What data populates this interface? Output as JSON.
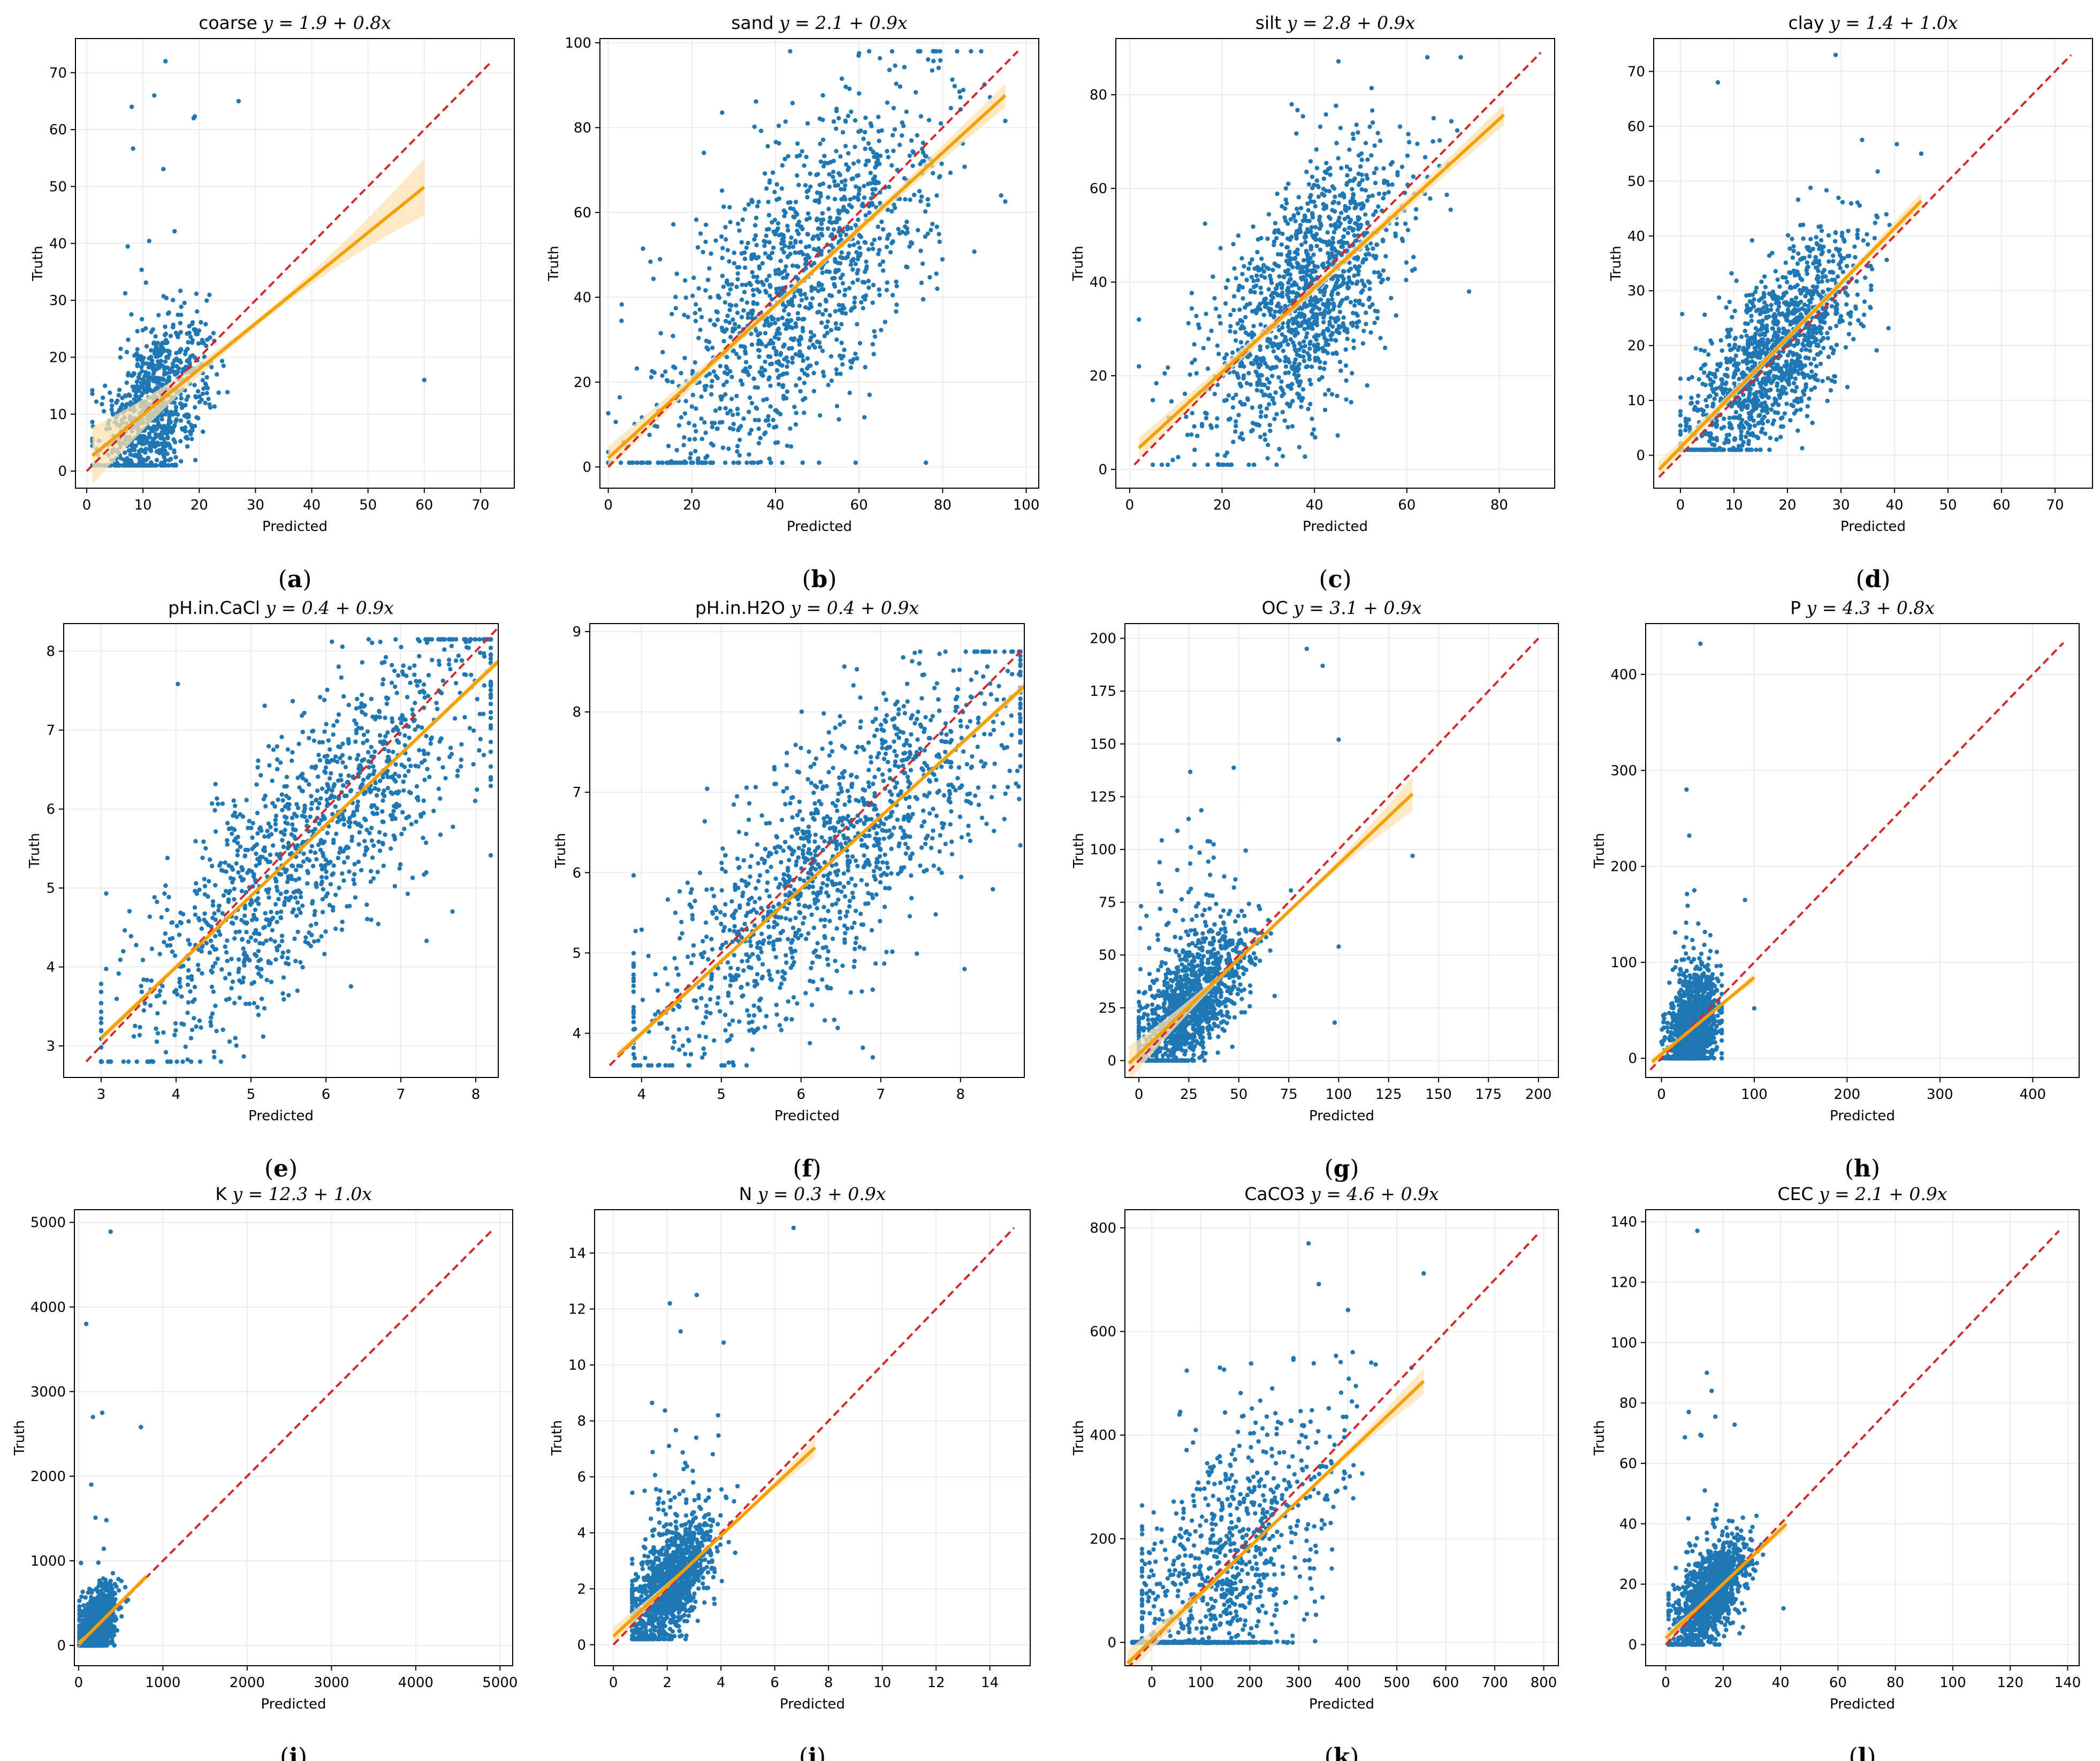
{
  "colors": {
    "points": "#1f77b4",
    "fit_line": "#f5a000",
    "fit_band": "#fde2b0",
    "identity": "#d62728",
    "grid": "#ececec"
  },
  "chart_data": [
    {
      "type": "scatter",
      "title_name": "coarse",
      "title_eq": "y = 1.9 + 0.8x",
      "label": "a",
      "xlabel": "Predicted",
      "ylabel": "Truth",
      "xlim": [
        -2,
        76
      ],
      "ylim": [
        -3,
        76
      ],
      "xticks": [
        0,
        10,
        20,
        30,
        40,
        50,
        60,
        70
      ],
      "yticks": [
        0,
        10,
        20,
        30,
        40,
        50,
        60,
        70
      ],
      "identity": [
        0,
        72
      ],
      "fit": {
        "intercept": 1.9,
        "slope": 0.8,
        "x": [
          1,
          60
        ],
        "band": [
          0.6,
          5.0
        ]
      },
      "cloud": {
        "n": 900,
        "xmean": 12,
        "xsd": 4.5,
        "noise": 7,
        "xmin": 1,
        "xmax": 30,
        "ymin": 1,
        "ymax": 72,
        "tail": 0.03
      },
      "outliers": [
        [
          60,
          16
        ],
        [
          8,
          64
        ],
        [
          14,
          72
        ],
        [
          12,
          66
        ],
        [
          19,
          62
        ],
        [
          27,
          65
        ]
      ]
    },
    {
      "type": "scatter",
      "title_name": "sand",
      "title_eq": "y = 2.1 + 0.9x",
      "label": "b",
      "xlabel": "Predicted",
      "ylabel": "Truth",
      "xlim": [
        -2,
        103
      ],
      "ylim": [
        -5,
        101
      ],
      "xticks": [
        0,
        20,
        40,
        60,
        80,
        100
      ],
      "yticks": [
        0,
        20,
        40,
        60,
        80,
        100
      ],
      "identity": [
        0,
        98
      ],
      "fit": {
        "intercept": 2.1,
        "slope": 0.9,
        "x": [
          0,
          95
        ],
        "band": [
          0.8,
          2.8
        ]
      },
      "cloud": {
        "n": 1300,
        "xmean": 45,
        "xsd": 17,
        "noise": 18,
        "xmin": 0,
        "xmax": 95,
        "ymin": 1,
        "ymax": 98,
        "tail": 0.0
      },
      "outliers": [
        [
          76,
          1
        ],
        [
          94,
          64
        ]
      ]
    },
    {
      "type": "scatter",
      "title_name": "silt",
      "title_eq": "y = 2.8 + 0.9x",
      "label": "c",
      "xlabel": "Predicted",
      "ylabel": "Truth",
      "xlim": [
        -3,
        92
      ],
      "ylim": [
        -4,
        92
      ],
      "xticks": [
        0,
        20,
        40,
        60,
        80
      ],
      "yticks": [
        0,
        20,
        40,
        60,
        80
      ],
      "identity": [
        1,
        89
      ],
      "fit": {
        "intercept": 2.8,
        "slope": 0.9,
        "x": [
          2,
          81
        ],
        "band": [
          1.0,
          2.2
        ]
      },
      "cloud": {
        "n": 1300,
        "xmean": 38,
        "xsd": 11,
        "noise": 13,
        "xmin": 5,
        "xmax": 85,
        "ymin": 1,
        "ymax": 88,
        "tail": 0.0
      },
      "outliers": [
        [
          2,
          32
        ],
        [
          2,
          22
        ]
      ]
    },
    {
      "type": "scatter",
      "title_name": "clay",
      "title_eq": "y = 1.4 + 1.0x",
      "label": "d",
      "xlabel": "Predicted",
      "ylabel": "Truth",
      "xlim": [
        -5,
        77
      ],
      "ylim": [
        -6,
        76
      ],
      "xticks": [
        0,
        10,
        20,
        30,
        40,
        50,
        60,
        70
      ],
      "yticks": [
        0,
        10,
        20,
        30,
        40,
        50,
        60,
        70
      ],
      "identity": [
        -4,
        73
      ],
      "fit": {
        "intercept": 1.4,
        "slope": 1.0,
        "x": [
          -4,
          45
        ],
        "band": [
          0.6,
          1.5
        ]
      },
      "cloud": {
        "n": 1300,
        "xmean": 17,
        "xsd": 8,
        "noise": 8,
        "xmin": 0,
        "xmax": 48,
        "ymin": 1,
        "ymax": 73,
        "tail": 0.0
      },
      "outliers": [
        [
          29,
          73
        ],
        [
          7,
          68
        ],
        [
          45,
          55
        ]
      ]
    },
    {
      "type": "scatter",
      "title_name": "pH.in.CaCl",
      "title_eq": "y = 0.4 + 0.9x",
      "label": "e",
      "xlabel": "Predicted",
      "ylabel": "Truth",
      "xlim": [
        2.5,
        8.3
      ],
      "ylim": [
        2.6,
        8.35
      ],
      "xticks": [
        3,
        4,
        5,
        6,
        7,
        8
      ],
      "yticks": [
        3,
        4,
        5,
        6,
        7,
        8
      ],
      "identity": [
        2.8,
        8.3
      ],
      "fit": {
        "intercept": 0.4,
        "slope": 0.9,
        "x": [
          3.0,
          8.3
        ],
        "band": [
          0.02,
          0.05
        ]
      },
      "cloud": {
        "n": 1300,
        "xmean": 5.8,
        "xsd": 1.3,
        "noise": 0.8,
        "xmin": 3.0,
        "xmax": 8.2,
        "ymin": 2.8,
        "ymax": 8.15,
        "tail": 0.0
      },
      "outliers": []
    },
    {
      "type": "scatter",
      "title_name": "pH.in.H2O",
      "title_eq": "y = 0.4 + 0.9x",
      "label": "f",
      "xlabel": "Predicted",
      "ylabel": "Truth",
      "xlim": [
        3.35,
        8.8
      ],
      "ylim": [
        3.45,
        9.1
      ],
      "xticks": [
        4,
        5,
        6,
        7,
        8
      ],
      "yticks": [
        4,
        5,
        6,
        7,
        8,
        9
      ],
      "identity": [
        3.6,
        8.8
      ],
      "fit": {
        "intercept": 0.4,
        "slope": 0.9,
        "x": [
          3.7,
          8.8
        ],
        "band": [
          0.02,
          0.05
        ]
      },
      "cloud": {
        "n": 1300,
        "xmean": 6.4,
        "xsd": 1.2,
        "noise": 0.8,
        "xmin": 3.9,
        "xmax": 8.75,
        "ymin": 3.6,
        "ymax": 8.75,
        "tail": 0.0
      },
      "outliers": [
        [
          8.05,
          4.8
        ],
        [
          6.9,
          3.7
        ]
      ]
    },
    {
      "type": "scatter",
      "title_name": "OC",
      "title_eq": "y = 3.1 + 0.9x",
      "label": "g",
      "xlabel": "Predicted",
      "ylabel": "Truth",
      "xlim": [
        -7,
        210
      ],
      "ylim": [
        -8,
        207
      ],
      "xticks": [
        0,
        25,
        50,
        75,
        100,
        125,
        150,
        175,
        200
      ],
      "yticks": [
        0,
        25,
        50,
        75,
        100,
        125,
        150,
        175,
        200
      ],
      "identity": [
        -5,
        200
      ],
      "fit": {
        "intercept": 3.1,
        "slope": 0.9,
        "x": [
          -5,
          137
        ],
        "band": [
          0.5,
          8
        ]
      },
      "cloud": {
        "n": 1300,
        "xmean": 25,
        "xsd": 14,
        "noise": 14,
        "xmin": 0,
        "xmax": 90,
        "ymin": 0,
        "ymax": 200,
        "tail": 0.06
      },
      "outliers": [
        [
          137,
          97
        ],
        [
          100,
          152
        ],
        [
          84,
          195
        ],
        [
          92,
          187
        ],
        [
          98,
          18
        ],
        [
          100,
          54
        ]
      ]
    },
    {
      "type": "scatter",
      "title_name": "P",
      "title_eq": "y = 4.3 + 0.8x",
      "label": "h",
      "xlabel": "Predicted",
      "ylabel": "Truth",
      "xlim": [
        -17,
        450
      ],
      "ylim": [
        -20,
        453
      ],
      "xticks": [
        0,
        100,
        200,
        300,
        400
      ],
      "yticks": [
        0,
        100,
        200,
        300,
        400
      ],
      "identity": [
        -12,
        433
      ],
      "fit": {
        "intercept": 4.3,
        "slope": 0.8,
        "x": [
          -10,
          100
        ],
        "band": [
          1,
          5
        ]
      },
      "cloud": {
        "n": 1300,
        "xmean": 35,
        "xsd": 13,
        "noise": 28,
        "xmin": 0,
        "xmax": 65,
        "ymin": 0,
        "ymax": 175,
        "tail": 0.02
      },
      "outliers": [
        [
          42,
          432
        ],
        [
          27,
          280
        ],
        [
          30,
          232
        ],
        [
          90,
          165
        ],
        [
          100,
          52
        ]
      ]
    },
    {
      "type": "scatter",
      "title_name": "K",
      "title_eq": "y = 12.3 + 1.0x",
      "label": "i",
      "xlabel": "Predicted",
      "ylabel": "Truth",
      "xlim": [
        -50,
        5150
      ],
      "ylim": [
        -240,
        5150
      ],
      "xticks": [
        0,
        1000,
        2000,
        3000,
        4000,
        5000
      ],
      "yticks": [
        0,
        1000,
        2000,
        3000,
        4000,
        5000
      ],
      "identity": [
        0,
        4900
      ],
      "fit": {
        "intercept": 12.3,
        "slope": 1.0,
        "x": [
          0,
          800
        ],
        "band": [
          10,
          40
        ]
      },
      "cloud": {
        "n": 1300,
        "xmean": 220,
        "xsd": 110,
        "noise": 170,
        "xmin": 10,
        "xmax": 800,
        "ymin": 0,
        "ymax": 1500,
        "tail": 0.02
      },
      "outliers": [
        [
          380,
          4890
        ],
        [
          90,
          3800
        ],
        [
          170,
          2700
        ],
        [
          280,
          2750
        ],
        [
          740,
          2580
        ],
        [
          150,
          1900
        ],
        [
          200,
          1510
        ],
        [
          330,
          1480
        ]
      ]
    },
    {
      "type": "scatter",
      "title_name": "N",
      "title_eq": "y = 0.3 + 0.9x",
      "label": "j",
      "xlabel": "Predicted",
      "ylabel": "Truth",
      "xlim": [
        -0.7,
        15.5
      ],
      "ylim": [
        -0.75,
        15.55
      ],
      "xticks": [
        0,
        2,
        4,
        6,
        8,
        10,
        12,
        14
      ],
      "yticks": [
        0,
        2,
        4,
        6,
        8,
        10,
        12,
        14
      ],
      "identity": [
        0,
        14.9
      ],
      "fit": {
        "intercept": 0.3,
        "slope": 0.9,
        "x": [
          0,
          7.5
        ],
        "band": [
          0.04,
          0.35
        ]
      },
      "cloud": {
        "n": 1300,
        "xmean": 2.1,
        "xsd": 0.8,
        "noise": 0.9,
        "xmin": 0.7,
        "xmax": 6.5,
        "ymin": 0.2,
        "ymax": 12.5,
        "tail": 0.05
      },
      "outliers": [
        [
          6.7,
          14.9
        ],
        [
          2.1,
          12.2
        ],
        [
          3.1,
          12.5
        ],
        [
          4.1,
          10.8
        ],
        [
          2.5,
          11.2
        ]
      ]
    },
    {
      "type": "scatter",
      "title_name": "CaCO3",
      "title_eq": "y = 4.6 + 0.9x",
      "label": "k",
      "xlabel": "Predicted",
      "ylabel": "Truth",
      "xlim": [
        -55,
        830
      ],
      "ylim": [
        -45,
        835
      ],
      "xticks": [
        0,
        100,
        200,
        300,
        400,
        500,
        600,
        700,
        800
      ],
      "yticks": [
        0,
        200,
        400,
        600,
        800
      ],
      "identity": [
        -50,
        790
      ],
      "fit": {
        "intercept": 4.6,
        "slope": 0.9,
        "x": [
          -50,
          555
        ],
        "band": [
          3,
          25
        ]
      },
      "cloud": {
        "n": 900,
        "xmean": 150,
        "xsd": 110,
        "noise": 130,
        "xmin": -20,
        "xmax": 480,
        "ymin": 0,
        "ymax": 790,
        "tail": 0.0
      },
      "outliers": [
        [
          555,
          712
        ],
        [
          410,
          560
        ],
        [
          530,
          530
        ],
        [
          320,
          770
        ]
      ],
      "floor": {
        "n": 380,
        "xmin": -40,
        "xmax": 320,
        "y": 0
      }
    },
    {
      "type": "scatter",
      "title_name": "CEC",
      "title_eq": "y = 2.1 + 0.9x",
      "label": "l",
      "xlabel": "Predicted",
      "ylabel": "Truth",
      "xlim": [
        -7,
        144
      ],
      "ylim": [
        -7,
        144
      ],
      "xticks": [
        0,
        20,
        40,
        60,
        80,
        100,
        120,
        140
      ],
      "yticks": [
        0,
        20,
        40,
        60,
        80,
        100,
        120,
        140
      ],
      "identity": [
        0,
        137
      ],
      "fit": {
        "intercept": 2.1,
        "slope": 0.9,
        "x": [
          0,
          42
        ],
        "band": [
          0.3,
          2
        ]
      },
      "cloud": {
        "n": 1300,
        "xmean": 15,
        "xsd": 6,
        "noise": 7,
        "xmin": 1,
        "xmax": 42,
        "ymin": 0,
        "ymax": 90,
        "tail": 0.03
      },
      "outliers": [
        [
          11,
          137
        ],
        [
          16,
          84
        ],
        [
          8,
          77
        ],
        [
          41,
          12
        ]
      ]
    }
  ]
}
